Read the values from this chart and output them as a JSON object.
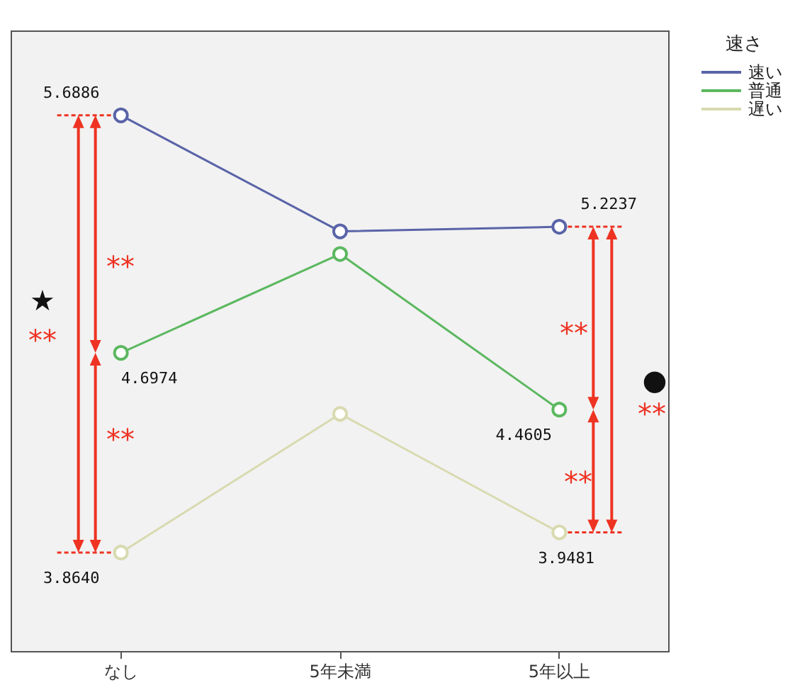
{
  "chart_data": {
    "type": "line",
    "legend_title": "速さ",
    "legend": "top right",
    "marker": "circle",
    "line_style": "solid",
    "tick_labels": "x",
    "categories": [
      "なし",
      "5年未満",
      "5年以上"
    ],
    "ylim": [
      3.45,
      6.04
    ],
    "series": [
      {
        "name": "速い",
        "color": "#5a64a8",
        "values": [
          5.6886,
          5.2044,
          5.2237
        ],
        "value_labels": [
          "5.6886",
          null,
          "5.2237"
        ]
      },
      {
        "name": "普通",
        "color": "#5cb860",
        "values": [
          4.6974,
          5.1099,
          4.4605
        ],
        "value_labels": [
          "4.6974",
          null,
          "4.4605"
        ]
      },
      {
        "name": "遅い",
        "color": "#d8dab0",
        "values": [
          3.864,
          4.4426,
          3.9481
        ],
        "value_labels": [
          "3.8640",
          null,
          "3.9481"
        ]
      }
    ],
    "annotations": [
      "**",
      "**",
      "★",
      "**",
      "**",
      "**",
      "●",
      "**"
    ]
  }
}
